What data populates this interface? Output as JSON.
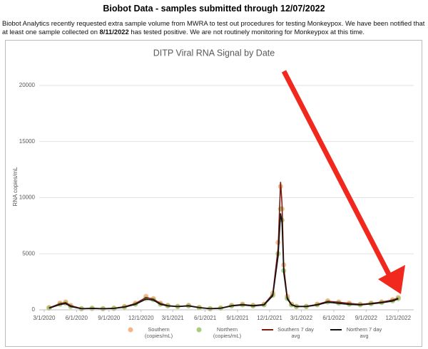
{
  "page": {
    "title": "Biobot Data - samples submitted through 12/07/2022",
    "intro": [
      "Biobot Analytics recently requested extra sample volume from MWRA to test out procedures for testing Monkeypox. We have been notified that at least one sample collected on ",
      "8/11/2022",
      " has tested positive. We are not routinely monitoring for Monkeypox at this time."
    ]
  },
  "chart_data": {
    "type": "scatter-line",
    "title": "DITP Viral RNA Signal by Date",
    "y_label": "RNA copies/mL",
    "x": [
      "3/15/2020",
      "4/15/2020",
      "5/1/2020",
      "5/15/2020",
      "6/15/2020",
      "7/15/2020",
      "8/15/2020",
      "9/15/2020",
      "10/15/2020",
      "11/15/2020",
      "12/15/2020",
      "1/5/2021",
      "1/25/2021",
      "2/15/2021",
      "3/15/2021",
      "4/15/2021",
      "5/15/2021",
      "6/15/2021",
      "7/15/2021",
      "8/15/2021",
      "9/15/2021",
      "10/15/2021",
      "11/15/2021",
      "12/10/2021",
      "12/25/2021",
      "1/1/2022",
      "1/5/2022",
      "1/10/2022",
      "1/20/2022",
      "2/1/2022",
      "2/15/2022",
      "3/15/2022",
      "4/15/2022",
      "5/15/2022",
      "6/15/2022",
      "7/15/2022",
      "8/15/2022",
      "9/15/2022",
      "10/15/2022",
      "11/15/2022",
      "12/1/2022"
    ],
    "series": [
      {
        "name": "Southern (copies/mL)",
        "kind": "dots",
        "color": "#f2a36b",
        "values": [
          200,
          600,
          700,
          400,
          100,
          150,
          100,
          150,
          300,
          600,
          1200,
          1000,
          600,
          400,
          300,
          400,
          200,
          100,
          150,
          400,
          500,
          400,
          500,
          1500,
          6000,
          11000,
          9000,
          4000,
          1200,
          500,
          300,
          300,
          500,
          800,
          700,
          600,
          500,
          600,
          700,
          900,
          1100
        ]
      },
      {
        "name": "Northern (copies/mL)",
        "kind": "dots",
        "color": "#92c05e",
        "values": [
          150,
          500,
          600,
          300,
          100,
          120,
          100,
          120,
          250,
          500,
          1000,
          900,
          500,
          350,
          300,
          350,
          200,
          100,
          150,
          350,
          450,
          350,
          450,
          1300,
          5000,
          9000,
          8000,
          3500,
          1000,
          450,
          300,
          300,
          450,
          700,
          600,
          500,
          450,
          550,
          650,
          800,
          1000
        ]
      },
      {
        "name": "Southern 7 day avg",
        "kind": "line",
        "color": "#7a1c10",
        "values": [
          180,
          550,
          650,
          380,
          110,
          140,
          110,
          140,
          280,
          560,
          1100,
          950,
          580,
          380,
          300,
          380,
          210,
          110,
          150,
          380,
          480,
          390,
          480,
          1400,
          5500,
          11400,
          9500,
          3800,
          1100,
          480,
          310,
          310,
          480,
          760,
          680,
          580,
          490,
          580,
          690,
          880,
          1050
        ]
      },
      {
        "name": "Northern 7 day avg",
        "kind": "line",
        "color": "#111111",
        "values": [
          140,
          470,
          560,
          290,
          100,
          120,
          100,
          120,
          240,
          480,
          950,
          860,
          480,
          340,
          290,
          340,
          190,
          100,
          140,
          340,
          430,
          340,
          430,
          1250,
          4800,
          8600,
          7800,
          3300,
          980,
          440,
          290,
          290,
          430,
          680,
          580,
          480,
          440,
          530,
          630,
          780,
          980
        ]
      }
    ],
    "xlim": [
      "2/16/2020",
      "1/14/2023"
    ],
    "xticks": [
      "3/1/2020",
      "6/1/2020",
      "9/1/2020",
      "12/1/2020",
      "3/1/2021",
      "6/1/2021",
      "9/1/2021",
      "12/1/2021",
      "3/1/2022",
      "6/1/2022",
      "9/1/2022",
      "12/1/2022"
    ],
    "ylim": [
      0,
      22000
    ],
    "yticks": [
      0,
      5000,
      10000,
      15000,
      20000
    ],
    "grid": true
  }
}
